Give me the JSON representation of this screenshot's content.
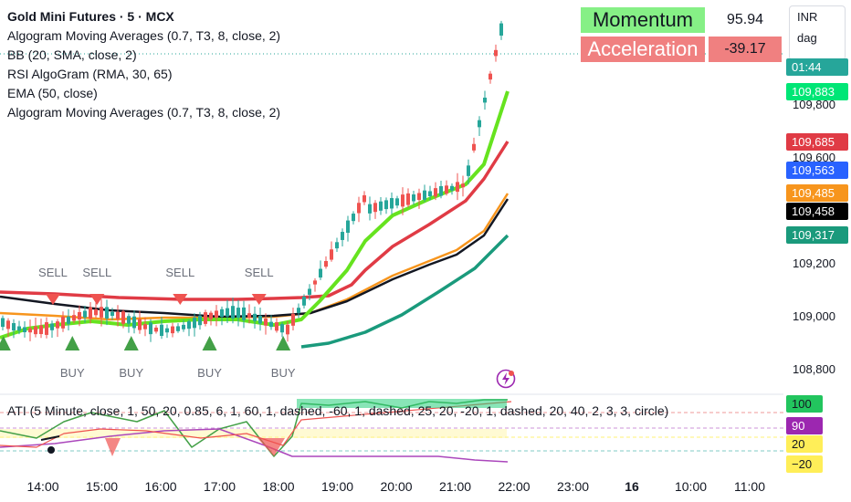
{
  "legend": {
    "title": "Gold Mini Futures · 5 · MCX",
    "indicators": [
      "Algogram Moving Averages (0.7, T3, 8, close, 2)",
      "BB (20, SMA, close, 2)",
      "RSI AlgoGram (RMA, 30, 65)",
      "EMA (50, close)",
      "Algogram Moving Averages (0.7, T3, 8, close, 2)"
    ]
  },
  "oscillator": {
    "legend": "ATI (5 Minute, close, 1, 50, 20, 0.85, 6, 1, 60, 1, dashed, -60, 1, dashed, 25, 20, -20, 1, dashed, 20, 40, 2, 3, 3, circle)",
    "scale_labels": [
      {
        "text": "100",
        "bg": "#22c55e",
        "fg": "#131722",
        "value": 100
      },
      {
        "text": "90",
        "bg": "#9c27b0",
        "fg": "#ffffff",
        "value": 90
      },
      {
        "text": "20",
        "bg": "#ffee58",
        "fg": "#131722",
        "value": 20
      },
      {
        "text": "−20",
        "bg": "#ffee58",
        "fg": "#131722",
        "value": -20
      }
    ]
  },
  "panel": {
    "momentum_label": "Momentum",
    "momentum_value": "95.94",
    "acceleration_label": "Acceleration",
    "acceleration_value": "-39.17",
    "momentum_color": "#86f086",
    "acceleration_color": "#f08080"
  },
  "currency_menu": {
    "currency": "INR",
    "unit": "dag"
  },
  "colors": {
    "fast_ma": "#66e31f",
    "bb_upper": "#e03b45",
    "bb_basis": "#f7951d",
    "ema": "#131722",
    "bb_lower": "#1a9a7c",
    "bull": "#26a69a",
    "bear": "#ef5350",
    "signal_buy": "#43a047",
    "signal_sell": "#ef5350"
  },
  "chart_data": {
    "type": "candlestick",
    "x_ticks": [
      "14:00",
      "15:00",
      "16:00",
      "17:00",
      "18:00",
      "19:00",
      "20:00",
      "21:00",
      "22:00",
      "23:00",
      "16",
      "10:00",
      "11:00"
    ],
    "y_ticks": [
      109800,
      109600,
      109200,
      109000,
      108800
    ],
    "price_labels": [
      {
        "text": "01:44",
        "value": 109950,
        "color": "#26a69a"
      },
      {
        "text": "109,883",
        "value": 109883,
        "color": "#00e676"
      },
      {
        "text": "109,685",
        "value": 109685,
        "color": "#e03b45"
      },
      {
        "text": "109,563",
        "value": 109563,
        "color": "#2962ff"
      },
      {
        "text": "109,485",
        "value": 109485,
        "color": "#f7951d"
      },
      {
        "text": "109,458",
        "value": 109458,
        "color": "#000000"
      },
      {
        "text": "109,317",
        "value": 109317,
        "color": "#1a9a7c"
      }
    ],
    "signals": [
      {
        "type": "BUY",
        "time": 13.33,
        "label": ""
      },
      {
        "type": "SELL",
        "time": 14.17,
        "label": "SELL"
      },
      {
        "type": "BUY",
        "time": 14.5,
        "label": "BUY"
      },
      {
        "type": "SELL",
        "time": 14.92,
        "label": "SELL"
      },
      {
        "type": "BUY",
        "time": 15.5,
        "label": "BUY"
      },
      {
        "type": "SELL",
        "time": 16.33,
        "label": "SELL"
      },
      {
        "type": "BUY",
        "time": 16.83,
        "label": "BUY"
      },
      {
        "type": "SELL",
        "time": 17.67,
        "label": "SELL"
      },
      {
        "type": "BUY",
        "time": 18.08,
        "label": "BUY"
      }
    ]
  }
}
